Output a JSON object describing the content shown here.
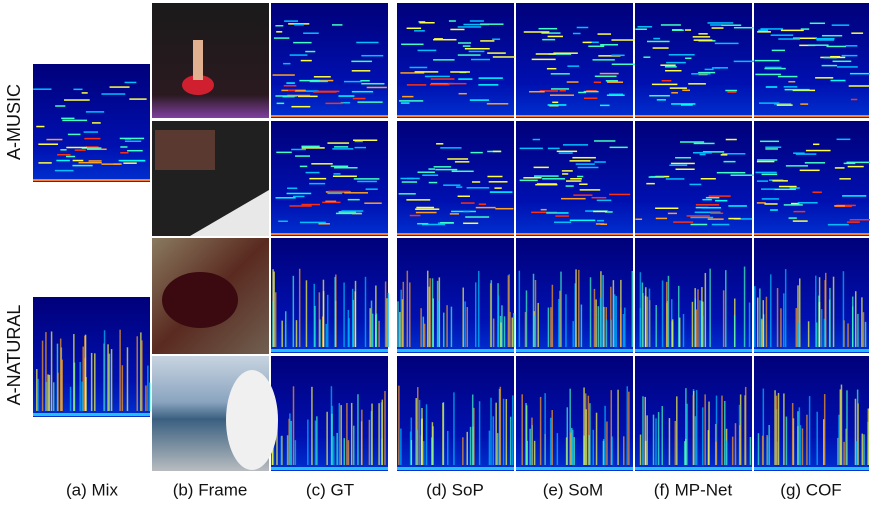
{
  "row_labels": [
    "A-MUSIC",
    "A-NATURAL"
  ],
  "column_labels": [
    "(a) Mix",
    "(b) Frame",
    "(c) GT",
    "(d) SoP",
    "(e) SoM",
    "(f) MP-Net",
    "(g) COF"
  ]
}
